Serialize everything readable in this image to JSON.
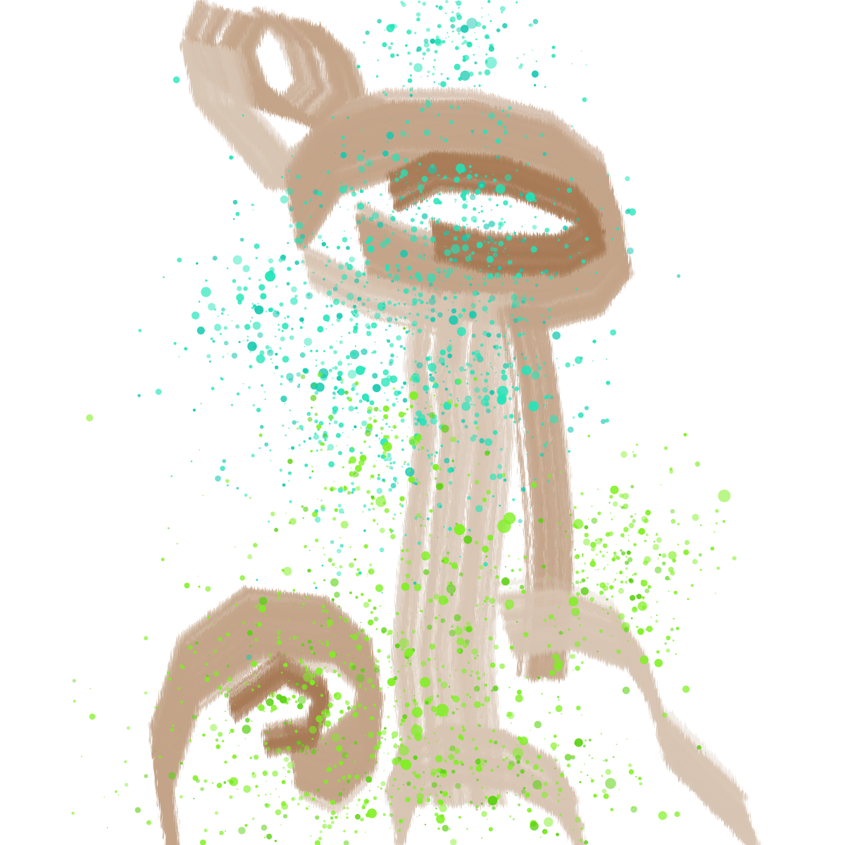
{
  "artwork": {
    "background_color": "#ffffff",
    "palette": {
      "brush_light": "#d8c5b3",
      "brush_mid": "#c4a58a",
      "brush_dark": "#a77a55",
      "splatter_cyan": "#21e5b9",
      "splatter_cyan_dark": "#14c9b0",
      "splatter_green": "#7ef01f",
      "splatter_green_dark": "#5ad10f"
    },
    "layers": [
      {
        "name": "brush-strokes",
        "color_key": "brush_mid"
      },
      {
        "name": "cyan-splatter",
        "color_key": "splatter_cyan"
      },
      {
        "name": "green-splatter",
        "color_key": "splatter_green"
      }
    ]
  }
}
